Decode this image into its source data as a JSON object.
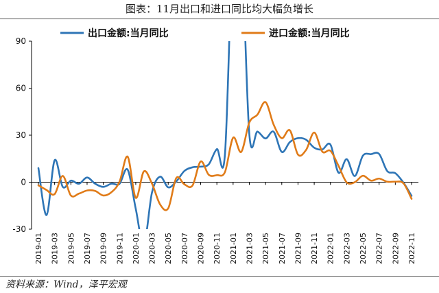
{
  "figure": {
    "title": "图表：11月出口和进口同比均大幅负增长",
    "source": "资料来源：Wind，泽平宏观"
  },
  "colors": {
    "export": "#2e75b6",
    "import": "#e07b18",
    "axis": "#000000"
  },
  "chart_data": {
    "type": "line",
    "title": "图表：11月出口和进口同比均大幅负增长",
    "xlabel": "",
    "ylabel": "",
    "ylim": [
      -30,
      90
    ],
    "yticks": [
      -30,
      0,
      30,
      60,
      90
    ],
    "grid": false,
    "legend_position": "top",
    "x": [
      "2019-01",
      "2019-02",
      "2019-03",
      "2019-04",
      "2019-05",
      "2019-06",
      "2019-07",
      "2019-08",
      "2019-09",
      "2019-10",
      "2019-11",
      "2019-12",
      "2020-01",
      "2020-02",
      "2020-03",
      "2020-04",
      "2020-05",
      "2020-06",
      "2020-07",
      "2020-08",
      "2020-09",
      "2020-10",
      "2020-11",
      "2020-12",
      "2021-01",
      "2021-02",
      "2021-03",
      "2021-04",
      "2021-05",
      "2021-06",
      "2021-07",
      "2021-08",
      "2021-09",
      "2021-10",
      "2021-11",
      "2021-12",
      "2022-01",
      "2022-02",
      "2022-03",
      "2022-04",
      "2022-05",
      "2022-06",
      "2022-07",
      "2022-08",
      "2022-09",
      "2022-10",
      "2022-11"
    ],
    "x_tick_labels": [
      "2019-01",
      "2019-03",
      "2019-05",
      "2019-07",
      "2019-09",
      "2019-11",
      "2020-01",
      "2020-03",
      "2020-05",
      "2020-07",
      "2020-09",
      "2020-11",
      "2021-01",
      "2021-03",
      "2021-05",
      "2021-07",
      "2021-09",
      "2021-11",
      "2022-01",
      "2022-03",
      "2022-05",
      "2022-07",
      "2022-09",
      "2022-11"
    ],
    "series": [
      {
        "name": "出口金额:当月同比",
        "color": "#2e75b6",
        "values": [
          9,
          -21,
          14,
          -3,
          1,
          -1,
          3,
          -1,
          -3,
          -1,
          -1,
          8,
          -17,
          -40,
          -6.6,
          3.5,
          -3.3,
          0.5,
          7.2,
          9.5,
          9.9,
          11.4,
          21.1,
          18.1,
          154,
          154,
          30.6,
          32.3,
          27.9,
          32.2,
          19.3,
          25.6,
          28.1,
          27.1,
          22.0,
          20.9,
          24,
          6,
          14.7,
          3.9,
          16.9,
          17.9,
          18.0,
          7.1,
          5.7,
          -0.3,
          -8.7
        ]
      },
      {
        "name": "进口金额:当月同比",
        "color": "#e07b18",
        "values": [
          -2,
          -5,
          -7.6,
          4,
          -8.5,
          -7.3,
          -5.3,
          -5.6,
          -8.5,
          -6.4,
          0.3,
          16.3,
          -10,
          6.9,
          -0.9,
          -14.2,
          -16.7,
          2.7,
          -1.4,
          -2.1,
          13.2,
          4.7,
          4.5,
          6.5,
          28.4,
          19.3,
          38.1,
          43.1,
          51.1,
          36.7,
          28.1,
          33.1,
          17.6,
          20.6,
          31.7,
          19.5,
          20,
          10.4,
          -0.1,
          0,
          4.1,
          1.0,
          2.3,
          0.3,
          0.3,
          -0.7,
          -10.6
        ]
      }
    ]
  }
}
